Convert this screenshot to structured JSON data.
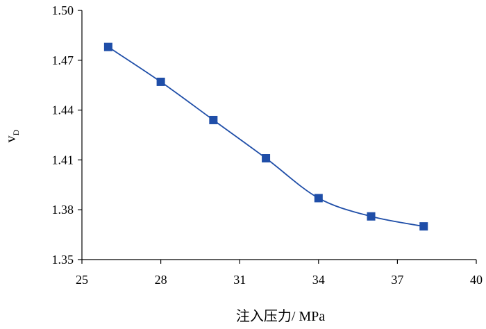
{
  "chart_data": {
    "type": "line",
    "x": [
      26,
      28,
      30,
      32,
      34,
      36,
      38
    ],
    "series": [
      {
        "values": [
          1.478,
          1.457,
          1.434,
          1.411,
          1.387,
          1.376,
          1.37
        ]
      }
    ],
    "xlim": [
      25,
      40
    ],
    "ylim": [
      1.35,
      1.5
    ],
    "xticks": [
      "25",
      "28",
      "31",
      "34",
      "37",
      "40"
    ],
    "yticks": [
      "1.35",
      "1.38",
      "1.41",
      "1.44",
      "1.47",
      "1.50"
    ],
    "xlabel": "注入压力/ MPa",
    "ylabel": "v",
    "ylabel_sub": "D",
    "grid": false,
    "legend": "none",
    "line_color": "#1f4ea8",
    "marker": "square"
  }
}
